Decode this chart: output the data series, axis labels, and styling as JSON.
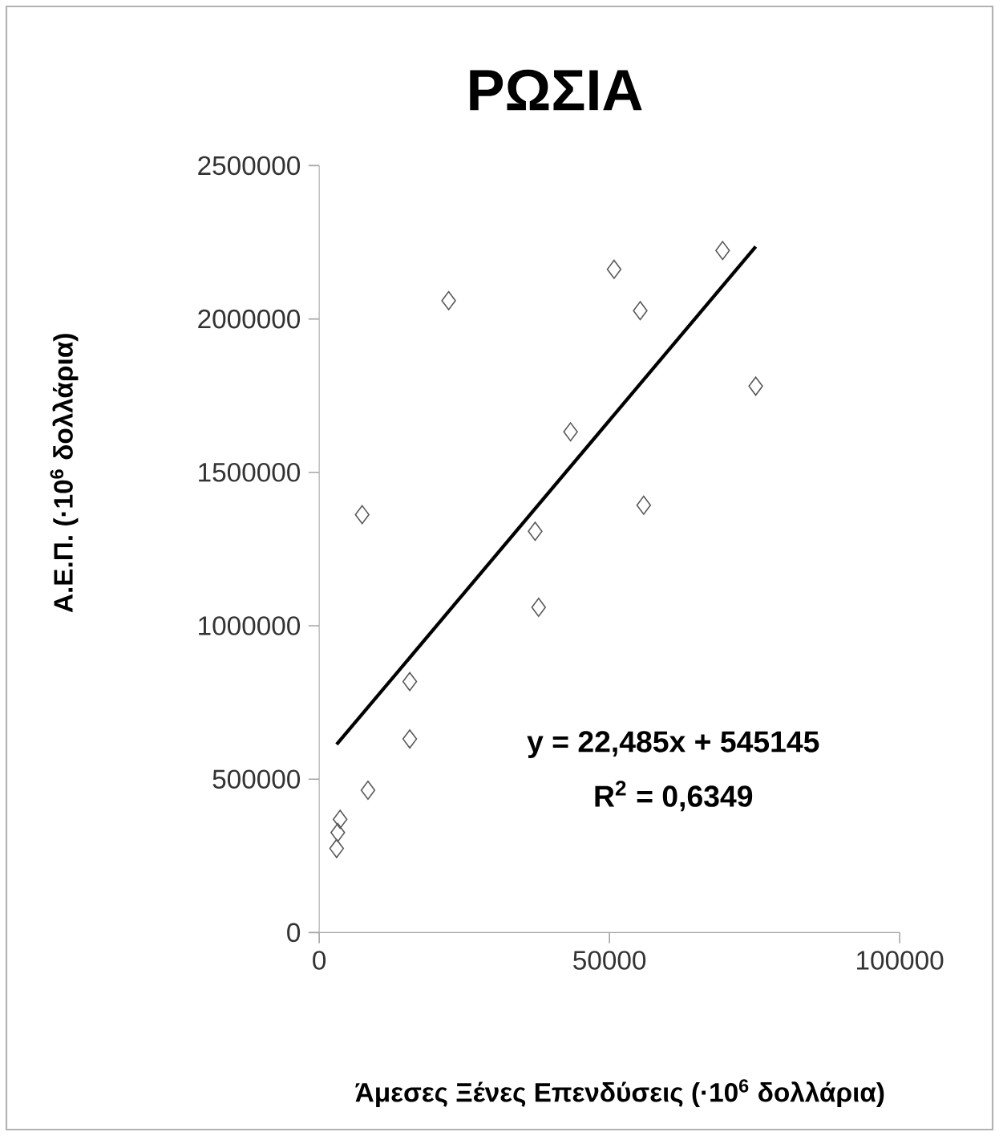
{
  "chart_data": {
    "type": "scatter",
    "title": "ΡΩΣΙΑ",
    "xlabel": "Άμεσες Ξένες Επενδύσεις (·10$^{6}$ δολλάρια)",
    "ylabel": "Α.Ε.Π.  (·10$^{6}$ δολλάρια)",
    "annotations": [
      "y = 22,485x + 545145",
      "R$^{2}$ = 0,6349"
    ],
    "marker": "diamond",
    "xlim": [
      0,
      100000
    ],
    "xticks": [
      0,
      50000,
      100000
    ],
    "ylim": [
      0,
      2500000
    ],
    "yticks": [
      0,
      500000,
      1000000,
      1500000,
      2000000,
      2500000
    ],
    "series": [
      {
        "color": "#595959",
        "x": [
          3000,
          3200,
          3600,
          8400,
          15600,
          15600,
          7400,
          22300,
          37200,
          37800,
          43300,
          50800,
          55300,
          55900,
          69500,
          75200
        ],
        "values": [
          274000,
          326000,
          369000,
          464000,
          631000,
          818000,
          1362000,
          2060000,
          1308000,
          1060000,
          1632000,
          2162000,
          2027000,
          1393000,
          2223000,
          1781000
        ]
      },
      {
        "type": "line",
        "color": "#000000",
        "line_style": "solid",
        "marker": "none",
        "x": [
          3000,
          75200
        ],
        "values": [
          613000,
          2236000
        ]
      }
    ]
  }
}
